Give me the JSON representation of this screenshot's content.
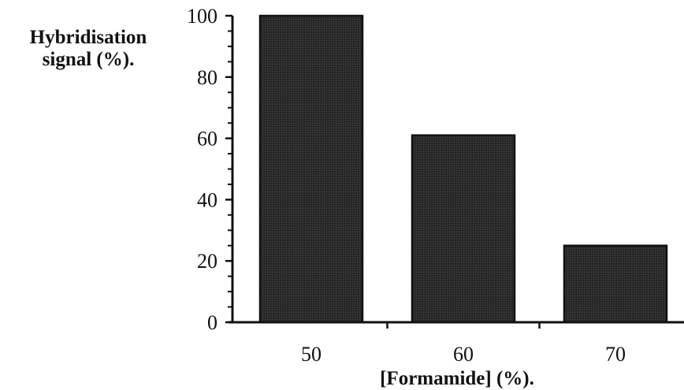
{
  "chart_data": {
    "type": "bar",
    "title": "",
    "ylabel_lines": [
      "Hybridisation",
      "signal (%)."
    ],
    "xlabel": "[Formamide] (%).",
    "categories": [
      "50",
      "60",
      "70"
    ],
    "values": [
      100,
      61,
      25
    ],
    "ylim": [
      0,
      100
    ],
    "yticks": [
      "0",
      "20",
      "40",
      "60",
      "80",
      "100"
    ],
    "grid": false,
    "legend": "none",
    "bar_color": "#2a2a2a"
  }
}
